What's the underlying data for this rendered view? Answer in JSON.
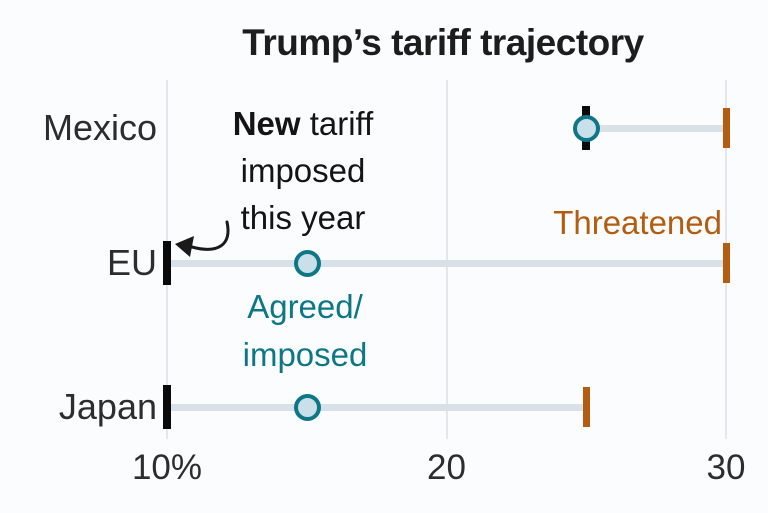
{
  "title": "Trump’s tariff trajectory",
  "annotations": {
    "new_tariff": {
      "bold": "New",
      "rest": " tariff",
      "line2": "imposed",
      "line3": "this year"
    },
    "agreed": {
      "line1": "Agreed/",
      "line2": "imposed"
    },
    "threatened": "Threatened"
  },
  "colors": {
    "agreed_teal": "#0e7787",
    "circle_fill": "#c9e0ea",
    "threatened_orange": "#b45c10",
    "imposed_black": "#0a0a0a",
    "connector_line": "#d9e1e8",
    "gridline": "#e4e7ea",
    "text_dark": "#1d1d1d"
  },
  "chart_data": {
    "type": "scatter",
    "subtype": "dumbbell-range",
    "title": "Trump’s tariff trajectory",
    "x_unit": "percent",
    "x_range": [
      10,
      30
    ],
    "x_ticks": [
      {
        "value": 10,
        "label": "10%"
      },
      {
        "value": 20,
        "label": "20"
      },
      {
        "value": 30,
        "label": "30"
      }
    ],
    "categories": [
      "Mexico",
      "EU",
      "Japan"
    ],
    "series": [
      {
        "name": "New tariff imposed this year",
        "marker": "black-tick",
        "values": [
          25,
          10,
          10
        ]
      },
      {
        "name": "Agreed/imposed",
        "marker": "teal-circle",
        "values": [
          25,
          15,
          15
        ]
      },
      {
        "name": "Threatened",
        "marker": "orange-tick",
        "values": [
          30,
          30,
          25
        ]
      }
    ],
    "range_lines": [
      [
        25,
        30
      ],
      [
        10,
        30
      ],
      [
        10,
        25
      ]
    ],
    "grid": "vertical-only",
    "legend_position": "inline-annotations"
  }
}
